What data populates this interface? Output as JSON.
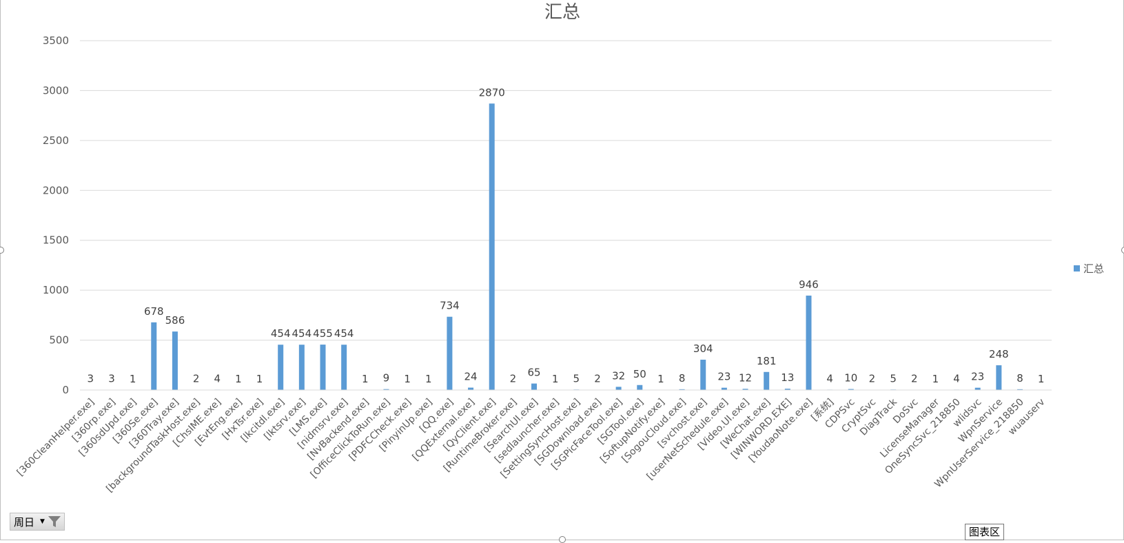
{
  "chart_data": {
    "type": "bar",
    "title": "汇总",
    "xlabel": "",
    "ylabel": "",
    "ylim": [
      0,
      3500
    ],
    "yticks": [
      0,
      500,
      1000,
      1500,
      2000,
      2500,
      3000,
      3500
    ],
    "grid": true,
    "legend_position": "right",
    "series": [
      {
        "name": "汇总",
        "color": "#5b9bd5",
        "values": [
          3,
          3,
          1,
          678,
          586,
          2,
          4,
          1,
          1,
          454,
          454,
          455,
          454,
          1,
          9,
          1,
          1,
          734,
          24,
          2870,
          2,
          65,
          1,
          5,
          2,
          32,
          50,
          1,
          8,
          304,
          23,
          12,
          181,
          13,
          946,
          4,
          10,
          2,
          5,
          2,
          1,
          4,
          23,
          248,
          8,
          1
        ]
      }
    ],
    "categories": [
      "[360CleanHelper.exe]",
      "[360rp.exe]",
      "[360sdUpd.exe]",
      "[360Se.exe]",
      "[360Tray.exe]",
      "[backgroundTaskHost.exe]",
      "[ChsIME.exe]",
      "[EvtEng.exe]",
      "[HxTsr.exe]",
      "[lkcitdl.exe]",
      "[lktsrv.exe]",
      "[LMS.exe]",
      "[nidmsrv.exe]",
      "[NvBackend.exe]",
      "[OfficeClickToRun.exe]",
      "[PDFCCheck.exe]",
      "[PinyinUp.exe]",
      "[QQ.exe]",
      "[QQExternal.exe]",
      "[QyClient.exe]",
      "[RuntimeBroker.exe]",
      "[SearchUI.exe]",
      "[sedlauncher.exe]",
      "[SettingSyncHost.exe]",
      "[SGDownload.exe]",
      "[SGPicFaceTool.exe]",
      "[SGTool.exe]",
      "[SoftupNotify.exe]",
      "[SogouCloud.exe]",
      "[svchost.exe]",
      "[userNetSchedule.exe]",
      "[Video.UI.exe]",
      "[WeChat.exe]",
      "[WINWORD.EXE]",
      "[YoudaoNote.exe]",
      "[系统]",
      "CDPSvc",
      "CryptSvc",
      "DiagTrack",
      "DoSvc",
      "LicenseManager",
      "OneSyncSvc_218850",
      "wlidsvc",
      "WpnService",
      "WpnUserService_218850",
      "wuauserv"
    ]
  },
  "filter_button": {
    "label": "周日",
    "dropdown_icon": "dropdown-arrow-icon",
    "icon": "filter-funnel-icon"
  },
  "tooltip": {
    "text": "图表区"
  },
  "colors": {
    "bar": "#5b9bd5",
    "grid": "#d9d9d9",
    "text": "#595959",
    "label": "#404040"
  }
}
